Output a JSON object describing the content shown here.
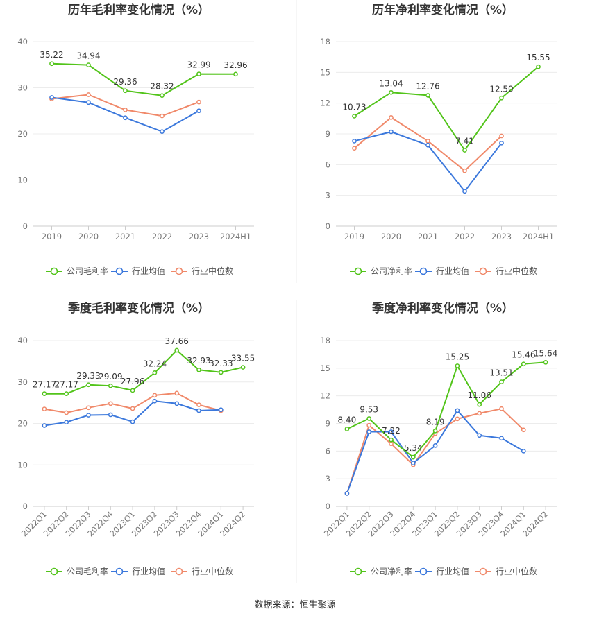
{
  "footer": "数据来源：恒生聚源",
  "colors": {
    "company": "#52c41a",
    "industry_avg": "#3b78dc",
    "industry_median": "#f0896a"
  },
  "chart_data": [
    {
      "type": "line",
      "title": "历年毛利率变化情况（%）",
      "categories": [
        "2019",
        "2020",
        "2021",
        "2022",
        "2023",
        "2024H1"
      ],
      "ylim": [
        0,
        40
      ],
      "yticks": [
        "0",
        "10",
        "20",
        "30",
        "40"
      ],
      "ytick_values": [
        0,
        10,
        20,
        30,
        40
      ],
      "series": [
        {
          "name": "公司毛利率",
          "color": "#52c41a",
          "values": [
            35.22,
            34.94,
            29.36,
            28.32,
            32.99,
            32.96
          ],
          "labels": [
            "35.22",
            "34.94",
            "29.36",
            "28.32",
            "32.99",
            "32.96"
          ]
        },
        {
          "name": "行业均值",
          "color": "#3b78dc",
          "values": [
            27.9,
            26.8,
            23.5,
            20.5,
            25.0,
            null
          ]
        },
        {
          "name": "行业中位数",
          "color": "#f0896a",
          "values": [
            27.6,
            28.5,
            25.2,
            23.9,
            26.9,
            null
          ]
        }
      ]
    },
    {
      "type": "line",
      "title": "历年净利率变化情况（%）",
      "categories": [
        "2019",
        "2020",
        "2021",
        "2022",
        "2023",
        "2024H1"
      ],
      "ylim": [
        0,
        18
      ],
      "yticks": [
        "0",
        "3",
        "6",
        "9",
        "12",
        "15",
        "18"
      ],
      "ytick_values": [
        0,
        3,
        6,
        9,
        12,
        15,
        18
      ],
      "series": [
        {
          "name": "公司净利率",
          "color": "#52c41a",
          "values": [
            10.73,
            13.04,
            12.76,
            7.41,
            12.5,
            15.55
          ],
          "labels": [
            "10.73",
            "13.04",
            "12.76",
            "7.41",
            "12.50",
            "15.55"
          ]
        },
        {
          "name": "行业均值",
          "color": "#3b78dc",
          "values": [
            8.3,
            9.2,
            7.9,
            3.4,
            8.1,
            null
          ]
        },
        {
          "name": "行业中位数",
          "color": "#f0896a",
          "values": [
            7.6,
            10.6,
            8.3,
            5.4,
            8.8,
            null
          ]
        }
      ]
    },
    {
      "type": "line",
      "title": "季度毛利率变化情况（%）",
      "categories": [
        "2022Q1",
        "2022Q2",
        "2022Q3",
        "2022Q4",
        "2023Q1",
        "2023Q2",
        "2023Q3",
        "2023Q4",
        "2024Q1",
        "2024Q2"
      ],
      "ylim": [
        0,
        40
      ],
      "yticks": [
        "0",
        "10",
        "20",
        "30",
        "40"
      ],
      "ytick_values": [
        0,
        10,
        20,
        30,
        40
      ],
      "series": [
        {
          "name": "公司毛利率",
          "color": "#52c41a",
          "values": [
            27.17,
            27.17,
            29.33,
            29.09,
            27.96,
            32.24,
            37.66,
            32.93,
            32.33,
            33.55
          ],
          "labels": [
            "27.17",
            "27.17",
            "29.33",
            "29.09",
            "27.96",
            "32.24",
            "37.66",
            "32.93",
            "32.33",
            "33.55"
          ]
        },
        {
          "name": "行业均值",
          "color": "#3b78dc",
          "values": [
            19.5,
            20.3,
            22.0,
            22.1,
            20.4,
            25.4,
            24.8,
            23.1,
            23.3,
            null
          ]
        },
        {
          "name": "行业中位数",
          "color": "#f0896a",
          "values": [
            23.5,
            22.6,
            23.8,
            24.8,
            23.6,
            26.8,
            27.3,
            24.5,
            23.1,
            null
          ]
        }
      ]
    },
    {
      "type": "line",
      "title": "季度净利率变化情况（%）",
      "categories": [
        "2022Q1",
        "2022Q2",
        "2022Q3",
        "2022Q4",
        "2023Q1",
        "2023Q2",
        "2023Q3",
        "2023Q4",
        "2024Q1",
        "2024Q2"
      ],
      "ylim": [
        0,
        18
      ],
      "yticks": [
        "0",
        "3",
        "6",
        "9",
        "12",
        "15",
        "18"
      ],
      "ytick_values": [
        0,
        3,
        6,
        9,
        12,
        15,
        18
      ],
      "series": [
        {
          "name": "公司净利率",
          "color": "#52c41a",
          "values": [
            8.4,
            9.53,
            7.22,
            5.34,
            8.19,
            15.25,
            11.06,
            13.51,
            15.46,
            15.64
          ],
          "labels": [
            "8.40",
            "9.53",
            "7.22",
            "5.34",
            "8.19",
            "15.25",
            "11.06",
            "13.51",
            "15.46",
            "15.64"
          ]
        },
        {
          "name": "行业均值",
          "color": "#3b78dc",
          "values": [
            1.4,
            8.1,
            8.1,
            4.7,
            6.6,
            10.4,
            7.7,
            7.4,
            6.0,
            null
          ]
        },
        {
          "name": "行业中位数",
          "color": "#f0896a",
          "values": [
            1.4,
            8.8,
            6.8,
            4.5,
            7.9,
            9.5,
            10.1,
            10.6,
            8.3,
            null
          ]
        }
      ]
    }
  ]
}
